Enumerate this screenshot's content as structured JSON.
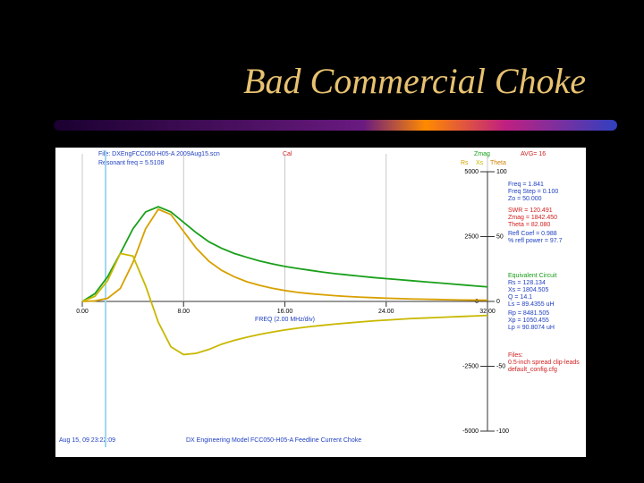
{
  "slide_title": "Bad Commercial Choke",
  "header": {
    "file": "File: DXEngFCC050-H05-A 2009Aug15.scn",
    "resonant": "Resonant freq = 5.5108",
    "cal": "Cal",
    "avg": "AVG= 16"
  },
  "footer": {
    "time": "Aug 15, 09  23:22:09",
    "model": "DX Engineering Model FCC050-H05-A Feedline Current Choke"
  },
  "readout": [
    {
      "text": "Freq = 1.841",
      "color": "#2040c0"
    },
    {
      "text": "Freq Step = 0.100",
      "color": "#2040c0"
    },
    {
      "text": "Zo = 50.000",
      "color": "#2040c0"
    },
    {
      "text": "SWR = 120.491",
      "color": "#d02020"
    },
    {
      "text": "Zmag = 1842.450",
      "color": "#d02020"
    },
    {
      "text": "Theta = 82.080",
      "color": "#d02020"
    },
    {
      "text": "Refl Coef = 0.988",
      "color": "#2040c0"
    },
    {
      "text": "% refl power = 97.7",
      "color": "#2040c0"
    },
    {
      "text": "Equivalent Circuit",
      "color": "#1a9a1a"
    },
    {
      "text": "Rs = 128.134",
      "color": "#2040c0"
    },
    {
      "text": "Xs = 1804.505",
      "color": "#2040c0"
    },
    {
      "text": "Q = 14.1",
      "color": "#2040c0"
    },
    {
      "text": "Ls = 89.4355 uH",
      "color": "#2040c0"
    },
    {
      "text": "Rp = 8481.505",
      "color": "#2040c0"
    },
    {
      "text": "Xp = 1050.455",
      "color": "#2040c0"
    },
    {
      "text": "Lp = 90.8074 uH",
      "color": "#2040c0"
    },
    {
      "text": "Files:",
      "color": "#d02020"
    },
    {
      "text": "0.5-inch spread clip-leads",
      "color": "#d02020"
    },
    {
      "text": "default_config.cfg",
      "color": "#d02020"
    }
  ],
  "chart_data": {
    "type": "line",
    "x_label": "FREQ (2.00 MHz/div)",
    "y2_labels": [
      "Theta"
    ],
    "cursor": 1.841,
    "x": [
      0,
      1,
      2,
      3,
      4,
      5,
      6,
      7,
      8,
      9,
      10,
      11,
      12,
      13,
      14,
      15,
      16,
      17,
      18,
      19,
      20,
      21,
      22,
      23,
      24,
      25,
      26,
      27,
      28,
      29,
      30,
      31,
      32
    ],
    "series": [
      {
        "name": "Zmag",
        "color": "#1aa01a",
        "values": [
          0,
          300,
          950,
          1850,
          2800,
          3450,
          3650,
          3450,
          3050,
          2650,
          2300,
          2050,
          1850,
          1700,
          1560,
          1450,
          1350,
          1270,
          1200,
          1130,
          1070,
          1020,
          970,
          920,
          880,
          840,
          800,
          760,
          720,
          680,
          640,
          600,
          560
        ]
      },
      {
        "name": "Rs",
        "color": "#d8a000",
        "values": [
          0,
          20,
          120,
          500,
          1500,
          2800,
          3550,
          3350,
          2700,
          2050,
          1550,
          1200,
          950,
          760,
          620,
          510,
          420,
          350,
          300,
          260,
          220,
          190,
          165,
          145,
          125,
          110,
          95,
          85,
          75,
          65,
          55,
          50,
          45
        ]
      },
      {
        "name": "Xs",
        "color": "#c8b800",
        "values": [
          0,
          200,
          800,
          1850,
          1750,
          600,
          -800,
          -1750,
          -2050,
          -2000,
          -1850,
          -1650,
          -1500,
          -1380,
          -1270,
          -1180,
          -1100,
          -1030,
          -970,
          -920,
          -870,
          -830,
          -790,
          -750,
          -720,
          -690,
          -660,
          -640,
          -620,
          -600,
          -580,
          -560,
          -540
        ]
      }
    ],
    "xlim": [
      0,
      32
    ],
    "xticks": [
      {
        "value": 0,
        "label": "0.00"
      },
      {
        "value": 8,
        "label": "8.00"
      },
      {
        "value": 16,
        "label": "16.00"
      },
      {
        "value": 24,
        "label": "24.00"
      },
      {
        "value": 32,
        "label": "32.00"
      }
    ],
    "ylim": [
      -5000,
      5000
    ],
    "yticks": [
      5000,
      2500,
      0,
      -2500,
      -5000
    ],
    "y2lim": [
      -100,
      100
    ],
    "y2ticks": [
      100,
      50,
      0,
      -50,
      -100
    ],
    "grid": true
  }
}
